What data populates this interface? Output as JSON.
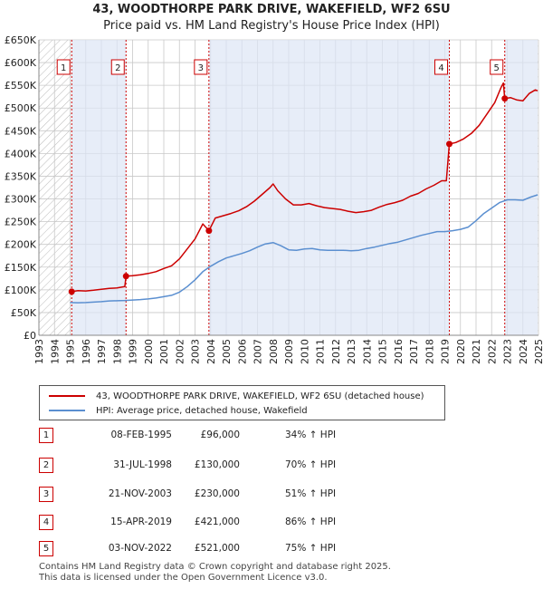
{
  "chart_data": {
    "type": "line",
    "title": "43, WOODTHORPE PARK DRIVE, WAKEFIELD, WF2 6SU",
    "subtitle": "Price paid vs. HM Land Registry's House Price Index (HPI)",
    "xlim": [
      1993,
      2025
    ],
    "ylim": [
      0,
      650000
    ],
    "y_ticks": [
      {
        "value": 0,
        "label": "£0"
      },
      {
        "value": 50000,
        "label": "£50K"
      },
      {
        "value": 100000,
        "label": "£100K"
      },
      {
        "value": 150000,
        "label": "£150K"
      },
      {
        "value": 200000,
        "label": "£200K"
      },
      {
        "value": 250000,
        "label": "£250K"
      },
      {
        "value": 300000,
        "label": "£300K"
      },
      {
        "value": 350000,
        "label": "£350K"
      },
      {
        "value": 400000,
        "label": "£400K"
      },
      {
        "value": 450000,
        "label": "£450K"
      },
      {
        "value": 500000,
        "label": "£500K"
      },
      {
        "value": 550000,
        "label": "£550K"
      },
      {
        "value": 600000,
        "label": "£600K"
      },
      {
        "value": 650000,
        "label": "£650K"
      }
    ],
    "x_ticks": [
      "1993",
      "1994",
      "1995",
      "1996",
      "1997",
      "1998",
      "1999",
      "2000",
      "2001",
      "2002",
      "2003",
      "2004",
      "2005",
      "2006",
      "2007",
      "2008",
      "2009",
      "2010",
      "2011",
      "2012",
      "2013",
      "2014",
      "2015",
      "2016",
      "2017",
      "2018",
      "2019",
      "2020",
      "2021",
      "2022",
      "2023",
      "2024",
      "2025"
    ],
    "series": [
      {
        "name": "43, WOODTHORPE PARK DRIVE, WAKEFIELD, WF2 6SU (detached house)",
        "color": "#cc0000",
        "points": [
          [
            1995.1,
            96000
          ],
          [
            1995.5,
            98000
          ],
          [
            1996.0,
            97500
          ],
          [
            1996.5,
            99000
          ],
          [
            1997.0,
            101000
          ],
          [
            1997.5,
            103000
          ],
          [
            1998.0,
            104000
          ],
          [
            1998.5,
            107000
          ],
          [
            1998.58,
            130000
          ],
          [
            1999.0,
            131000
          ],
          [
            1999.5,
            133000
          ],
          [
            2000.0,
            136000
          ],
          [
            2000.5,
            140000
          ],
          [
            2001.0,
            147000
          ],
          [
            2001.5,
            153000
          ],
          [
            2002.0,
            168000
          ],
          [
            2002.5,
            190000
          ],
          [
            2003.0,
            212000
          ],
          [
            2003.5,
            245000
          ],
          [
            2003.89,
            230000
          ],
          [
            2004.3,
            258000
          ],
          [
            2004.8,
            263000
          ],
          [
            2005.3,
            268000
          ],
          [
            2005.8,
            274000
          ],
          [
            2006.3,
            283000
          ],
          [
            2006.8,
            295000
          ],
          [
            2007.3,
            310000
          ],
          [
            2007.8,
            325000
          ],
          [
            2008.0,
            333000
          ],
          [
            2008.3,
            318000
          ],
          [
            2008.8,
            300000
          ],
          [
            2009.3,
            287000
          ],
          [
            2009.8,
            287000
          ],
          [
            2010.3,
            290000
          ],
          [
            2010.8,
            285000
          ],
          [
            2011.3,
            281000
          ],
          [
            2011.8,
            279000
          ],
          [
            2012.3,
            277000
          ],
          [
            2012.8,
            273000
          ],
          [
            2013.3,
            270000
          ],
          [
            2013.8,
            272000
          ],
          [
            2014.3,
            275000
          ],
          [
            2014.8,
            282000
          ],
          [
            2015.3,
            288000
          ],
          [
            2015.8,
            292000
          ],
          [
            2016.3,
            297000
          ],
          [
            2016.8,
            306000
          ],
          [
            2017.3,
            312000
          ],
          [
            2017.8,
            322000
          ],
          [
            2018.3,
            330000
          ],
          [
            2018.8,
            340000
          ],
          [
            2019.1,
            340000
          ],
          [
            2019.29,
            421000
          ],
          [
            2019.7,
            424000
          ],
          [
            2020.2,
            432000
          ],
          [
            2020.7,
            444000
          ],
          [
            2021.2,
            462000
          ],
          [
            2021.7,
            487000
          ],
          [
            2022.2,
            512000
          ],
          [
            2022.6,
            545000
          ],
          [
            2022.75,
            555000
          ],
          [
            2022.84,
            521000
          ],
          [
            2023.2,
            523000
          ],
          [
            2023.6,
            518000
          ],
          [
            2024.0,
            516000
          ],
          [
            2024.4,
            532000
          ],
          [
            2024.8,
            540000
          ],
          [
            2024.95,
            538000
          ]
        ]
      },
      {
        "name": "HPI: Average price, detached house, Wakefield",
        "color": "#5b8fd0",
        "points": [
          [
            1995.0,
            72000
          ],
          [
            1995.5,
            71500
          ],
          [
            1996.0,
            72000
          ],
          [
            1996.5,
            73000
          ],
          [
            1997.0,
            74000
          ],
          [
            1997.5,
            75500
          ],
          [
            1998.0,
            76000
          ],
          [
            1998.5,
            76500
          ],
          [
            1999.0,
            77500
          ],
          [
            1999.5,
            78500
          ],
          [
            2000.0,
            80000
          ],
          [
            2000.5,
            82000
          ],
          [
            2001.0,
            85000
          ],
          [
            2001.5,
            88000
          ],
          [
            2002.0,
            95000
          ],
          [
            2002.5,
            107000
          ],
          [
            2003.0,
            122000
          ],
          [
            2003.5,
            140000
          ],
          [
            2004.0,
            152000
          ],
          [
            2004.5,
            162000
          ],
          [
            2005.0,
            170000
          ],
          [
            2005.5,
            175000
          ],
          [
            2006.0,
            180000
          ],
          [
            2006.5,
            186000
          ],
          [
            2007.0,
            194000
          ],
          [
            2007.5,
            201000
          ],
          [
            2008.0,
            204000
          ],
          [
            2008.5,
            197000
          ],
          [
            2009.0,
            188000
          ],
          [
            2009.5,
            187000
          ],
          [
            2010.0,
            190000
          ],
          [
            2010.5,
            191000
          ],
          [
            2011.0,
            188000
          ],
          [
            2011.5,
            187000
          ],
          [
            2012.0,
            187000
          ],
          [
            2012.5,
            187000
          ],
          [
            2013.0,
            186000
          ],
          [
            2013.5,
            187000
          ],
          [
            2014.0,
            191000
          ],
          [
            2014.5,
            194000
          ],
          [
            2015.0,
            198000
          ],
          [
            2015.5,
            202000
          ],
          [
            2016.0,
            205000
          ],
          [
            2016.5,
            210000
          ],
          [
            2017.0,
            215000
          ],
          [
            2017.5,
            220000
          ],
          [
            2018.0,
            224000
          ],
          [
            2018.5,
            228000
          ],
          [
            2019.0,
            228000
          ],
          [
            2019.5,
            230000
          ],
          [
            2020.0,
            233000
          ],
          [
            2020.5,
            238000
          ],
          [
            2021.0,
            252000
          ],
          [
            2021.5,
            268000
          ],
          [
            2022.0,
            280000
          ],
          [
            2022.5,
            292000
          ],
          [
            2023.0,
            298000
          ],
          [
            2023.5,
            298000
          ],
          [
            2024.0,
            297000
          ],
          [
            2024.5,
            304000
          ],
          [
            2024.95,
            309000
          ]
        ]
      }
    ],
    "sales": [
      {
        "n": "1",
        "year": 1995.1,
        "price": 96000,
        "date": "08-FEB-1995",
        "price_label": "£96,000",
        "hpi": "34% ↑ HPI"
      },
      {
        "n": "2",
        "year": 1998.58,
        "price": 130000,
        "date": "31-JUL-1998",
        "price_label": "£130,000",
        "hpi": "70% ↑ HPI"
      },
      {
        "n": "3",
        "year": 2003.89,
        "price": 230000,
        "date": "21-NOV-2003",
        "price_label": "£230,000",
        "hpi": "51% ↑ HPI"
      },
      {
        "n": "4",
        "year": 2019.29,
        "price": 421000,
        "date": "15-APR-2019",
        "price_label": "£421,000",
        "hpi": "86% ↑ HPI"
      },
      {
        "n": "5",
        "year": 2022.84,
        "price": 521000,
        "date": "03-NOV-2022",
        "price_label": "£521,000",
        "hpi": "75% ↑ HPI"
      }
    ],
    "footer_line1": "Contains HM Land Registry data © Crown copyright and database right 2025.",
    "footer_line2": "This data is licensed under the Open Government Licence v3.0.",
    "colors": {
      "price": "#cc0000",
      "hpi": "#5b8fd0",
      "shade": "#dde6f5",
      "grid": "#c8c8c8",
      "hatch": "#bbbbbb"
    }
  }
}
